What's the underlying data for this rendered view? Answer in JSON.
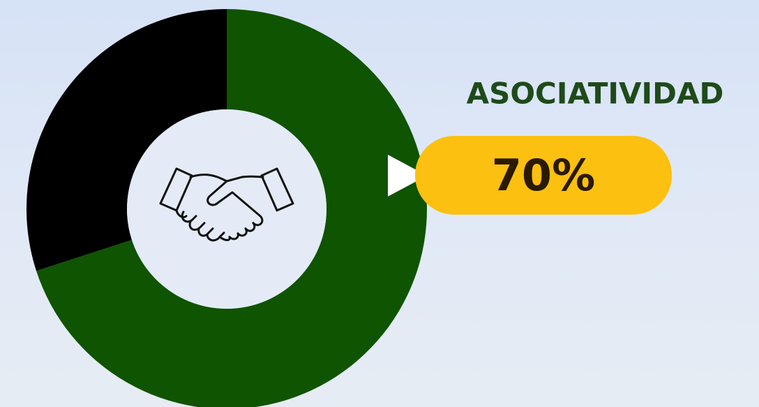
{
  "chart_data": {
    "type": "donut",
    "title": "ASOCIATIVIDAD",
    "values": [
      70,
      30
    ],
    "value_labels": [
      "70%",
      null
    ],
    "colors": [
      "#0f5400",
      "#000000"
    ]
  }
}
